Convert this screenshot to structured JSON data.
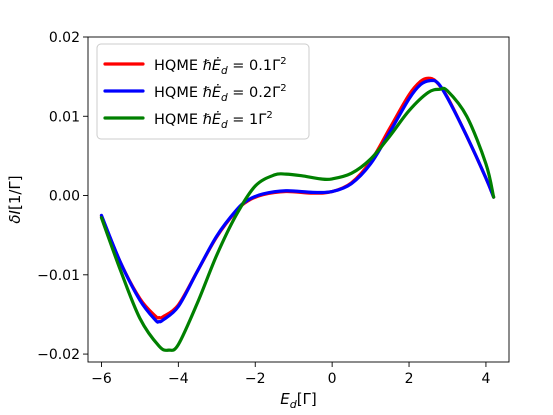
{
  "chart_data": {
    "type": "line",
    "title": "",
    "xlabel_main": "E",
    "xlabel_sub": "d",
    "xlabel_unit": "[Γ]",
    "ylabel_main": "δI",
    "ylabel_unit": "[1/Γ]",
    "xlim": [
      -6.35,
      4.6
    ],
    "ylim": [
      -0.021,
      0.02
    ],
    "xticks": [
      -6,
      -4,
      -2,
      0,
      2,
      4
    ],
    "xtick_labels": [
      "−6",
      "−4",
      "−2",
      "0",
      "2",
      "4"
    ],
    "yticks": [
      -0.02,
      -0.01,
      0.0,
      0.01,
      0.02
    ],
    "ytick_labels": [
      "−0.02",
      "−0.01",
      "0.00",
      "0.01",
      "0.02"
    ],
    "legend_position": "top-left",
    "legend_prefix": "HQME ",
    "series": [
      {
        "name": "0.1Γ²",
        "legend_rate": "0.1",
        "color": "#ff0000",
        "x": [
          -6.0,
          -5.5,
          -5.0,
          -4.6,
          -4.5,
          -4.4,
          -4.0,
          -3.5,
          -3.0,
          -2.5,
          -2.2,
          -1.8,
          -1.2,
          -0.5,
          0.0,
          0.5,
          1.0,
          1.5,
          2.0,
          2.3,
          2.5,
          2.7,
          3.0,
          3.5,
          4.0,
          4.2
        ],
        "y": [
          -0.0026,
          -0.0085,
          -0.013,
          -0.0152,
          -0.0154,
          -0.0153,
          -0.0138,
          -0.0095,
          -0.0052,
          -0.002,
          -0.0007,
          0.0001,
          0.0005,
          0.0003,
          0.0005,
          0.0016,
          0.0043,
          0.0085,
          0.0127,
          0.0144,
          0.0148,
          0.0144,
          0.0124,
          0.0075,
          0.0022,
          -0.0002
        ]
      },
      {
        "name": "0.2Γ²",
        "legend_rate": "0.2",
        "color": "#0000ff",
        "x": [
          -6.0,
          -5.5,
          -5.0,
          -4.6,
          -4.5,
          -4.4,
          -4.0,
          -3.5,
          -3.0,
          -2.5,
          -2.2,
          -1.8,
          -1.2,
          -0.5,
          0.0,
          0.5,
          1.0,
          1.5,
          2.0,
          2.3,
          2.55,
          2.75,
          3.0,
          3.5,
          4.0,
          4.2
        ],
        "y": [
          -0.0025,
          -0.0085,
          -0.0132,
          -0.0157,
          -0.0159,
          -0.0157,
          -0.014,
          -0.0095,
          -0.0051,
          -0.0019,
          -0.0006,
          0.0002,
          0.0006,
          0.0004,
          0.0005,
          0.0015,
          0.004,
          0.008,
          0.0122,
          0.014,
          0.0145,
          0.0142,
          0.0123,
          0.0075,
          0.0022,
          -0.0002
        ]
      },
      {
        "name": "1Γ²",
        "legend_rate": "1",
        "color": "#008000",
        "x": [
          -6.0,
          -5.5,
          -5.0,
          -4.5,
          -4.25,
          -4.0,
          -3.5,
          -3.0,
          -2.5,
          -2.0,
          -1.5,
          -1.2,
          -0.8,
          -0.3,
          0.0,
          0.5,
          1.0,
          1.5,
          2.0,
          2.5,
          2.8,
          3.0,
          3.5,
          4.0,
          4.2
        ],
        "y": [
          -0.0028,
          -0.0095,
          -0.0155,
          -0.019,
          -0.0195,
          -0.0188,
          -0.0135,
          -0.0075,
          -0.0025,
          0.0012,
          0.0026,
          0.0027,
          0.0025,
          0.0021,
          0.0021,
          0.0028,
          0.0046,
          0.0075,
          0.0107,
          0.013,
          0.0134,
          0.0132,
          0.01,
          0.004,
          -0.0002
        ]
      }
    ]
  }
}
